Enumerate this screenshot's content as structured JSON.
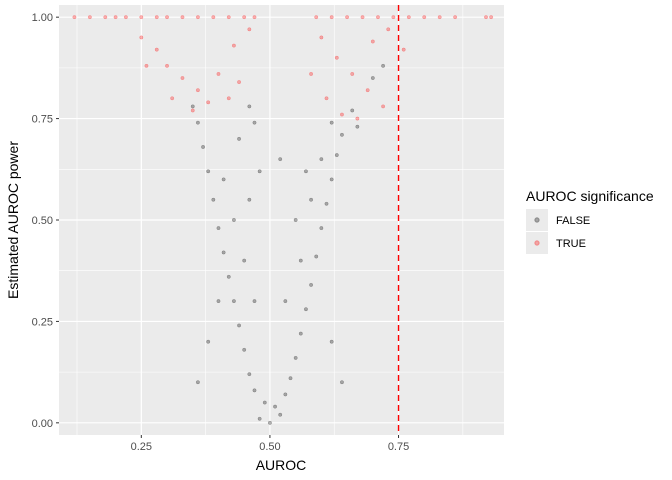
{
  "chart_data": {
    "type": "scatter",
    "title": "",
    "xlabel": "AUROC",
    "ylabel": "Estimated AUROC power",
    "xlim": [
      0.09,
      0.955
    ],
    "ylim": [
      -0.03,
      1.03
    ],
    "x_ticks": [
      0.25,
      0.5,
      0.75
    ],
    "x_tick_labels": [
      "0.25",
      "0.50",
      "0.75"
    ],
    "y_ticks": [
      0.0,
      0.25,
      0.5,
      0.75,
      1.0
    ],
    "y_tick_labels": [
      "0.00",
      "0.25",
      "0.50",
      "0.75",
      "1.00"
    ],
    "grid": true,
    "reference_line": {
      "orientation": "vertical",
      "x": 0.75,
      "style": "dashed",
      "color": "#ff0000"
    },
    "legend": {
      "title": "AUROC significance",
      "placement": "right",
      "entries": [
        {
          "label": "FALSE",
          "color": "#000000"
        },
        {
          "label": "TRUE",
          "color": "#ff0000"
        }
      ]
    },
    "series": [
      {
        "name": "FALSE",
        "color": "#000000",
        "opacity": 0.3,
        "points": [
          [
            0.48,
            0.01
          ],
          [
            0.5,
            0.0
          ],
          [
            0.52,
            0.02
          ],
          [
            0.49,
            0.05
          ],
          [
            0.51,
            0.04
          ],
          [
            0.47,
            0.08
          ],
          [
            0.53,
            0.07
          ],
          [
            0.46,
            0.12
          ],
          [
            0.54,
            0.11
          ],
          [
            0.45,
            0.18
          ],
          [
            0.55,
            0.16
          ],
          [
            0.44,
            0.24
          ],
          [
            0.56,
            0.22
          ],
          [
            0.43,
            0.3
          ],
          [
            0.57,
            0.28
          ],
          [
            0.42,
            0.36
          ],
          [
            0.58,
            0.34
          ],
          [
            0.41,
            0.42
          ],
          [
            0.59,
            0.41
          ],
          [
            0.4,
            0.48
          ],
          [
            0.6,
            0.48
          ],
          [
            0.39,
            0.55
          ],
          [
            0.61,
            0.54
          ],
          [
            0.38,
            0.62
          ],
          [
            0.62,
            0.6
          ],
          [
            0.37,
            0.68
          ],
          [
            0.63,
            0.66
          ],
          [
            0.36,
            0.74
          ],
          [
            0.64,
            0.71
          ],
          [
            0.35,
            0.78
          ],
          [
            0.66,
            0.77
          ],
          [
            0.7,
            0.85
          ],
          [
            0.72,
            0.88
          ],
          [
            0.4,
            0.3
          ],
          [
            0.45,
            0.4
          ],
          [
            0.43,
            0.5
          ],
          [
            0.41,
            0.6
          ],
          [
            0.44,
            0.7
          ],
          [
            0.56,
            0.4
          ],
          [
            0.58,
            0.55
          ],
          [
            0.6,
            0.65
          ],
          [
            0.62,
            0.74
          ],
          [
            0.38,
            0.2
          ],
          [
            0.62,
            0.2
          ],
          [
            0.36,
            0.1
          ],
          [
            0.64,
            0.1
          ],
          [
            0.47,
            0.3
          ],
          [
            0.53,
            0.3
          ],
          [
            0.46,
            0.55
          ],
          [
            0.48,
            0.62
          ],
          [
            0.55,
            0.5
          ],
          [
            0.57,
            0.62
          ],
          [
            0.47,
            0.74
          ],
          [
            0.46,
            0.78
          ],
          [
            0.52,
            0.65
          ],
          [
            0.67,
            0.73
          ]
        ]
      },
      {
        "name": "TRUE",
        "color": "#ff0000",
        "opacity": 0.3,
        "points": [
          [
            0.12,
            1.0
          ],
          [
            0.15,
            1.0
          ],
          [
            0.18,
            1.0
          ],
          [
            0.2,
            1.0
          ],
          [
            0.22,
            1.0
          ],
          [
            0.25,
            1.0
          ],
          [
            0.28,
            1.0
          ],
          [
            0.3,
            1.0
          ],
          [
            0.33,
            1.0
          ],
          [
            0.36,
            1.0
          ],
          [
            0.39,
            1.0
          ],
          [
            0.42,
            1.0
          ],
          [
            0.45,
            1.0
          ],
          [
            0.47,
            1.0
          ],
          [
            0.59,
            1.0
          ],
          [
            0.62,
            1.0
          ],
          [
            0.65,
            1.0
          ],
          [
            0.68,
            1.0
          ],
          [
            0.71,
            1.0
          ],
          [
            0.74,
            1.0
          ],
          [
            0.77,
            1.0
          ],
          [
            0.8,
            1.0
          ],
          [
            0.83,
            1.0
          ],
          [
            0.86,
            1.0
          ],
          [
            0.92,
            1.0
          ],
          [
            0.93,
            1.0
          ],
          [
            0.25,
            0.95
          ],
          [
            0.28,
            0.92
          ],
          [
            0.3,
            0.88
          ],
          [
            0.33,
            0.85
          ],
          [
            0.36,
            0.82
          ],
          [
            0.38,
            0.79
          ],
          [
            0.4,
            0.86
          ],
          [
            0.43,
            0.93
          ],
          [
            0.46,
            0.97
          ],
          [
            0.6,
            0.95
          ],
          [
            0.63,
            0.9
          ],
          [
            0.66,
            0.86
          ],
          [
            0.69,
            0.82
          ],
          [
            0.72,
            0.78
          ],
          [
            0.61,
            0.8
          ],
          [
            0.64,
            0.76
          ],
          [
            0.7,
            0.94
          ],
          [
            0.73,
            0.97
          ],
          [
            0.76,
            0.92
          ],
          [
            0.26,
            0.88
          ],
          [
            0.31,
            0.8
          ],
          [
            0.35,
            0.77
          ],
          [
            0.42,
            0.8
          ],
          [
            0.44,
            0.84
          ],
          [
            0.58,
            0.86
          ],
          [
            0.67,
            0.75
          ]
        ]
      }
    ]
  }
}
